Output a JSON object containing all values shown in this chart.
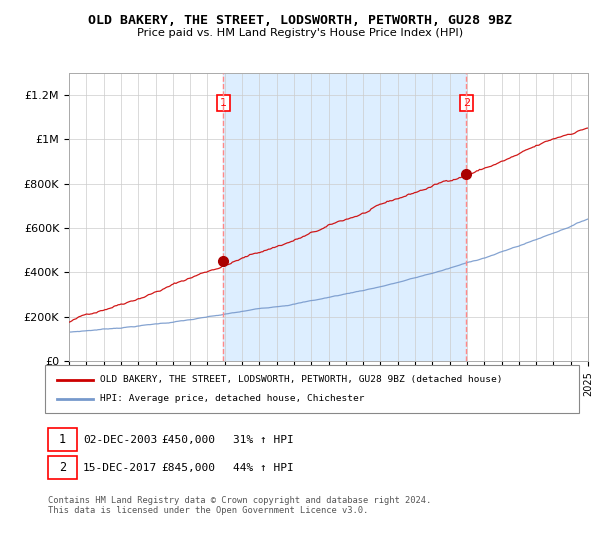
{
  "title": "OLD BAKERY, THE STREET, LODSWORTH, PETWORTH, GU28 9BZ",
  "subtitle": "Price paid vs. HM Land Registry's House Price Index (HPI)",
  "ylabel_ticks": [
    "£0",
    "£200K",
    "£400K",
    "£600K",
    "£800K",
    "£1M",
    "£1.2M"
  ],
  "ytick_values": [
    0,
    200000,
    400000,
    600000,
    800000,
    1000000,
    1200000
  ],
  "ylim": [
    0,
    1300000
  ],
  "xlim_start": 1995,
  "xlim_end": 2025,
  "marker1_x": 2003.92,
  "marker1_y": 450000,
  "marker2_x": 2017.96,
  "marker2_y": 845000,
  "red_color": "#cc0000",
  "blue_color": "#7799cc",
  "shade_color": "#ddeeff",
  "marker_color": "#aa0000",
  "dashed_color": "#ff8888",
  "legend_label_red": "OLD BAKERY, THE STREET, LODSWORTH, PETWORTH, GU28 9BZ (detached house)",
  "legend_label_blue": "HPI: Average price, detached house, Chichester",
  "table_row1_num": "1",
  "table_row1_date": "02-DEC-2003",
  "table_row1_price": "£450,000",
  "table_row1_hpi": "31% ↑ HPI",
  "table_row2_num": "2",
  "table_row2_date": "15-DEC-2017",
  "table_row2_price": "£845,000",
  "table_row2_hpi": "44% ↑ HPI",
  "footer": "Contains HM Land Registry data © Crown copyright and database right 2024.\nThis data is licensed under the Open Government Licence v3.0.",
  "background_color": "#ffffff",
  "grid_color": "#cccccc"
}
